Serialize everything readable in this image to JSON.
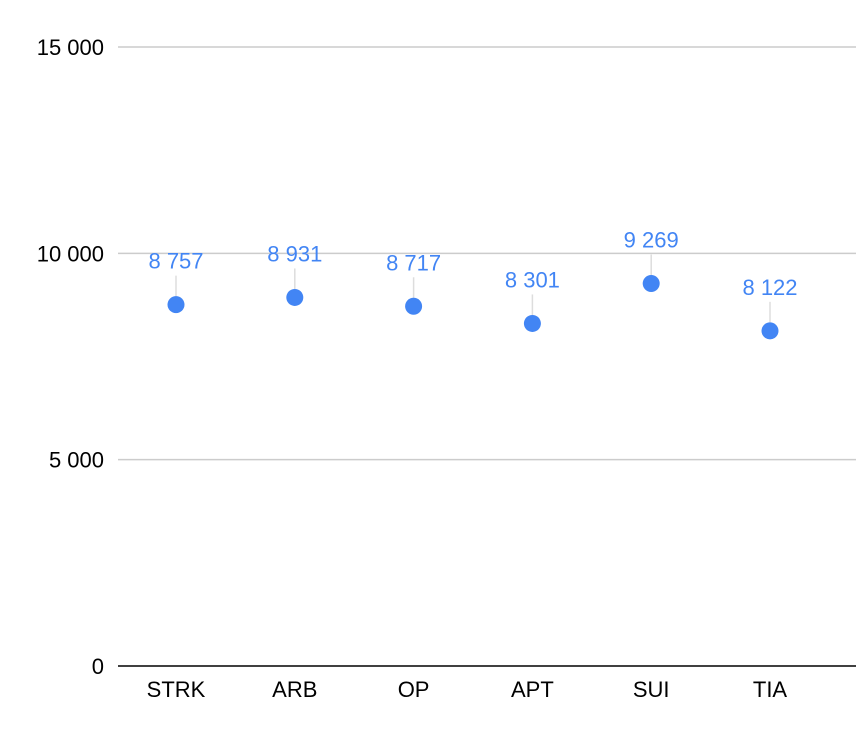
{
  "chart_data": {
    "type": "scatter",
    "categories": [
      "STRK",
      "ARB",
      "OP",
      "APT",
      "SUI",
      "TIA"
    ],
    "series": [
      {
        "values": [
          8757,
          8931,
          8717,
          8301,
          9269,
          8122
        ],
        "color": "#4285f4",
        "value_labels": [
          "8 757",
          "8 931",
          "8 717",
          "8 301",
          "9 269",
          "8 122"
        ]
      }
    ],
    "yticks": [
      0,
      5000,
      10000,
      15000
    ],
    "ytick_labels": [
      "0",
      "5 000",
      "10 000",
      "15 000"
    ],
    "ylim": [
      0,
      15000
    ],
    "grid": true,
    "gridline_color": "#cccccc",
    "axis_color": "#000000",
    "label_leader_color": "#dddddd"
  }
}
